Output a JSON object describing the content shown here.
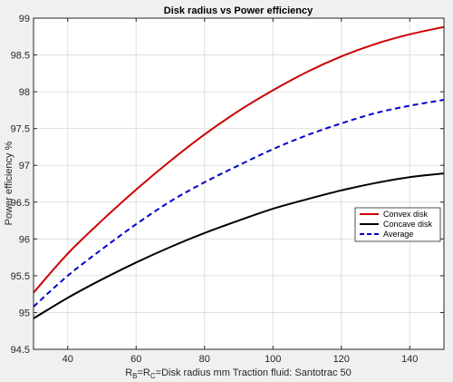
{
  "chart_data": {
    "type": "line",
    "title": "Disk radius vs Power efficiency",
    "xlabel": {
      "r": "R",
      "sub_b": "B",
      "eq1": "=R",
      "sub_c": "C",
      "rest": "=Disk radius mm    Traction fluid: Santotrac 50"
    },
    "ylabel": "Power efficiency %",
    "xlim": [
      30,
      150
    ],
    "ylim": [
      94.5,
      99
    ],
    "xticks": [
      40,
      60,
      80,
      100,
      120,
      140
    ],
    "xtick_labels": [
      "40",
      "60",
      "80",
      "100",
      "120",
      "140"
    ],
    "yticks": [
      94.5,
      95,
      95.5,
      96,
      96.5,
      97,
      97.5,
      98,
      98.5,
      99
    ],
    "ytick_labels": [
      "94.5",
      "95",
      "95.5",
      "96",
      "96.5",
      "97",
      "97.5",
      "98",
      "98.5",
      "99"
    ],
    "grid": true,
    "legend_position": "right",
    "x": [
      30,
      40,
      50,
      60,
      70,
      80,
      90,
      100,
      110,
      120,
      130,
      140,
      150
    ],
    "series": [
      {
        "name": "Convex disk",
        "color": "#cc0000",
        "style": "solid",
        "values": [
          95.27,
          95.8,
          96.25,
          96.67,
          97.06,
          97.42,
          97.74,
          98.02,
          98.27,
          98.48,
          98.65,
          98.78,
          98.88
        ]
      },
      {
        "name": "Concave disk",
        "color": "#000000",
        "style": "solid",
        "values": [
          94.92,
          95.2,
          95.45,
          95.68,
          95.89,
          96.08,
          96.25,
          96.41,
          96.54,
          96.66,
          96.76,
          96.84,
          96.89
        ]
      },
      {
        "name": "Average",
        "color": "#0000cc",
        "style": "dashed",
        "values": [
          95.08,
          95.5,
          95.86,
          96.2,
          96.51,
          96.77,
          97.0,
          97.22,
          97.41,
          97.57,
          97.71,
          97.81,
          97.89
        ]
      }
    ]
  }
}
